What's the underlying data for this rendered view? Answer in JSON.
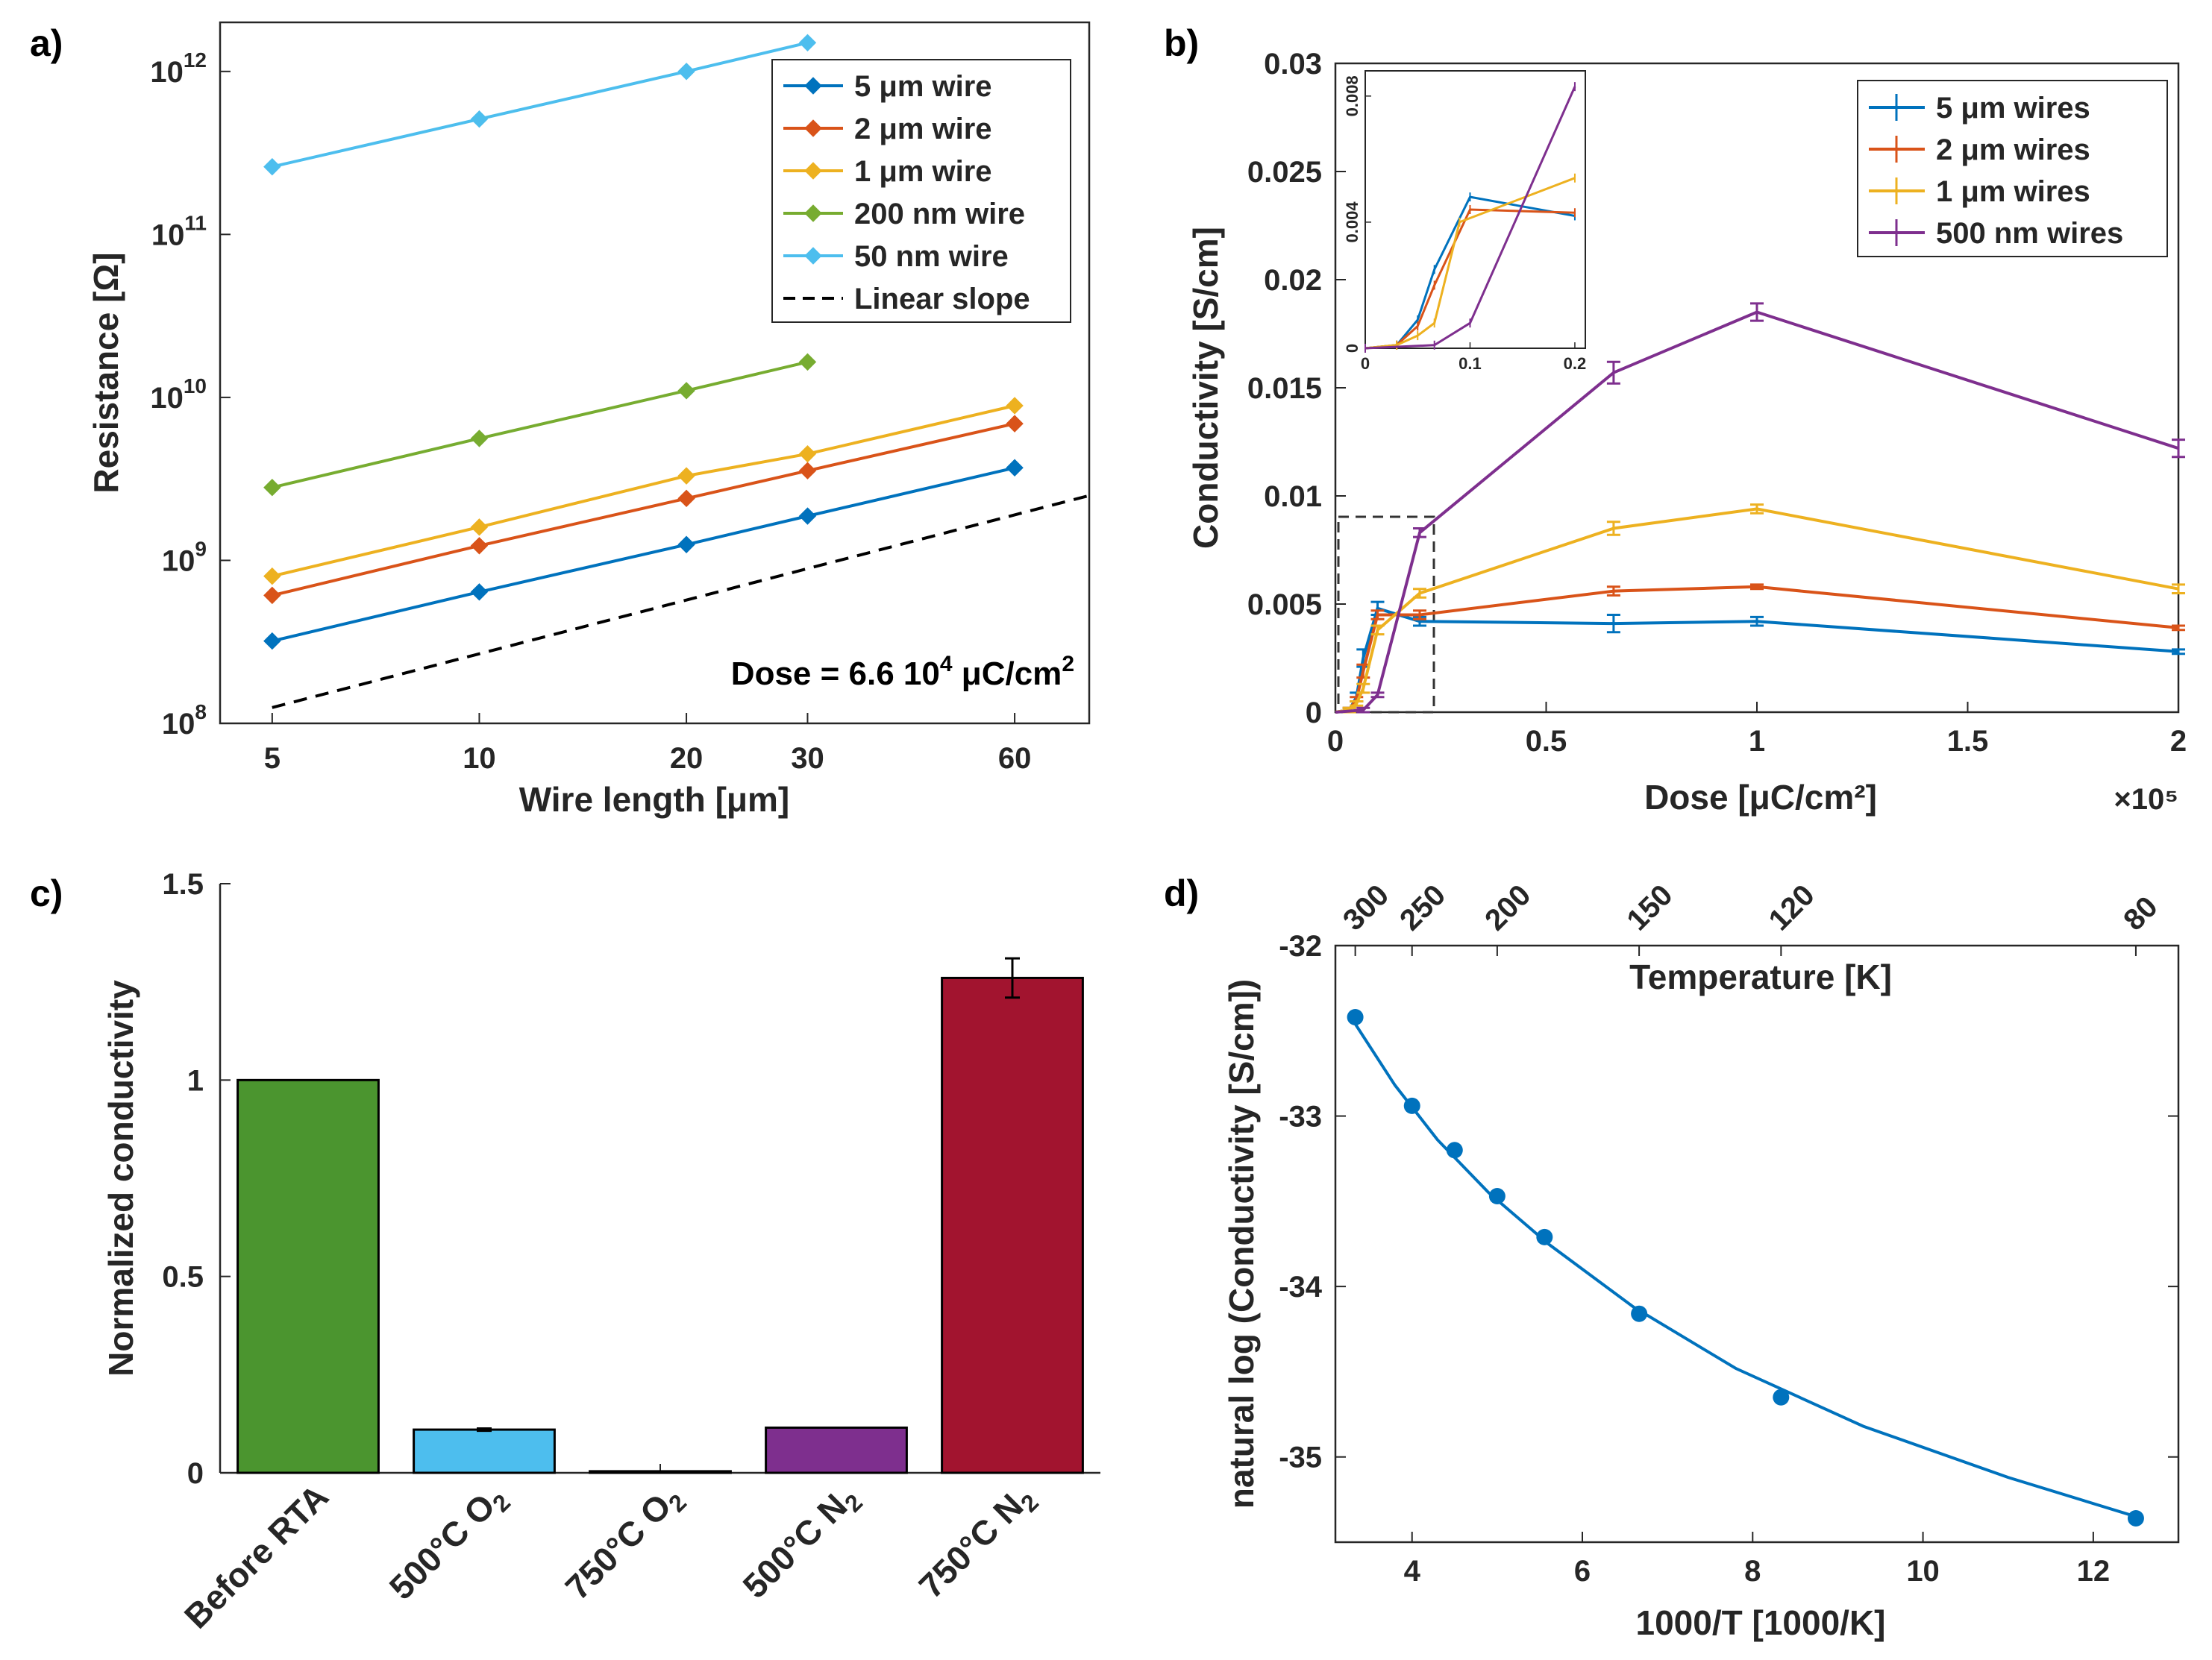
{
  "figure": {
    "panel_labels": [
      "a)",
      "b)",
      "c)",
      "d)"
    ]
  },
  "chart_data": [
    {
      "type": "line",
      "panel": "a)",
      "title": "",
      "xlabel": "Wire length   [μm]",
      "ylabel": "Resistance   [Ω]",
      "xscale": "log",
      "yscale": "log",
      "xlim": [
        4.2,
        77
      ],
      "ylim": [
        100000000,
        2000000000000
      ],
      "x_ticks": [
        5,
        10,
        20,
        30,
        60
      ],
      "x_tick_labels": [
        "5",
        "10",
        "20",
        "30",
        "60"
      ],
      "y_ticks": [
        100000000,
        1000000000,
        10000000000,
        100000000000,
        1000000000000
      ],
      "y_tick_labels": [
        {
          "base": "10",
          "exp": "8"
        },
        {
          "base": "10",
          "exp": "9"
        },
        {
          "base": "10",
          "exp": "10"
        },
        {
          "base": "10",
          "exp": "11"
        },
        {
          "base": "10",
          "exp": "12"
        }
      ],
      "grid": false,
      "legend_position": "top-right",
      "annotation": {
        "text": "Dose = 6.6 10",
        "sup": "4",
        "tail": " μC/cm",
        "sup2": "2"
      },
      "series": [
        {
          "name": "5 μm wire",
          "color": "#0072BD",
          "x": [
            5,
            10,
            20,
            30,
            60
          ],
          "y": [
            320000000,
            640000000,
            1250000000,
            1870000000,
            3700000000
          ]
        },
        {
          "name": "2 μm wire",
          "color": "#D95319",
          "x": [
            5,
            10,
            20,
            30,
            60
          ],
          "y": [
            610000000,
            1230000000,
            2400000000,
            3550000000,
            6900000000
          ]
        },
        {
          "name": "1 μm wire",
          "color": "#EDB120",
          "x": [
            5,
            10,
            20,
            30,
            60
          ],
          "y": [
            800000000,
            1600000000,
            3300000000,
            4500000000,
            8900000000
          ]
        },
        {
          "name": "200 nm wire",
          "color": "#77AC30",
          "x": [
            5,
            10,
            20,
            30
          ],
          "y": [
            2800000000,
            5600000000,
            11000000000,
            16500000000
          ]
        },
        {
          "name": "50 nm wire",
          "color": "#4DBEEE",
          "x": [
            5,
            10,
            20,
            30
          ],
          "y": [
            260000000000,
            510000000000,
            1000000000000,
            1500000000000
          ]
        },
        {
          "name": "Linear slope",
          "color": "#000000",
          "dashed": true,
          "x": [
            5,
            77
          ],
          "y": [
            125000000,
            2500000000
          ]
        }
      ]
    },
    {
      "type": "line",
      "panel": "b)",
      "title": "",
      "xlabel": "Dose   [μC/cm²]",
      "ylabel": "Conductivity   [S/cm]",
      "x_multiplier": "×10⁵",
      "xlim": [
        0,
        2
      ],
      "ylim": [
        0,
        0.03
      ],
      "x_ticks": [
        0,
        0.5,
        1,
        1.5,
        2
      ],
      "x_tick_labels": [
        "0",
        "0.5",
        "1",
        "1.5",
        "2"
      ],
      "y_ticks": [
        0,
        0.005,
        0.01,
        0.015,
        0.02,
        0.025,
        0.03
      ],
      "y_tick_labels": [
        "0",
        "0.005",
        "0.01",
        "0.015",
        "0.02",
        "0.025",
        "0.03"
      ],
      "grid": false,
      "legend_position": "top-right",
      "series": [
        {
          "name": "5 μm wires",
          "color": "#0072BD",
          "x": [
            0,
            0.033,
            0.05,
            0.066,
            0.1,
            0.2,
            0.66,
            1,
            2
          ],
          "y": [
            0,
            0.0001,
            0.0007,
            0.0025,
            0.0048,
            0.0042,
            0.0041,
            0.0042,
            0.0028
          ],
          "err": [
            0,
            0.0001,
            0.0002,
            0.0004,
            0.0003,
            0.0002,
            0.0004,
            0.0002,
            0.0001
          ]
        },
        {
          "name": "2 μm wires",
          "color": "#D95319",
          "x": [
            0,
            0.033,
            0.05,
            0.066,
            0.1,
            0.2,
            0.66,
            1,
            2
          ],
          "y": [
            0,
            0.0001,
            0.0006,
            0.0019,
            0.0045,
            0.0045,
            0.0056,
            0.0058,
            0.0039
          ],
          "err": [
            0,
            0.0001,
            0.0001,
            0.0003,
            0.0002,
            0.0002,
            0.0002,
            0.0001,
            0.0001
          ]
        },
        {
          "name": "1 μm wires",
          "color": "#EDB120",
          "x": [
            0,
            0.033,
            0.05,
            0.066,
            0.1,
            0.2,
            0.66,
            1,
            2
          ],
          "y": [
            0,
            0.0001,
            0.0004,
            0.0011,
            0.0038,
            0.0055,
            0.0085,
            0.0094,
            0.0057
          ],
          "err": [
            0,
            0.0001,
            0.0001,
            0.0002,
            0.0002,
            0.0002,
            0.0003,
            0.0002,
            0.0002
          ]
        },
        {
          "name": "500 nm wires",
          "color": "#7E2F8E",
          "x": [
            0,
            0.066,
            0.1,
            0.2,
            0.66,
            1,
            2
          ],
          "y": [
            0,
            0.0001,
            0.0008,
            0.0083,
            0.0157,
            0.0185,
            0.0122
          ],
          "err": [
            0,
            0.0001,
            0.0001,
            0.0002,
            0.0005,
            0.0004,
            0.0004
          ]
        }
      ],
      "inset": {
        "xlim": [
          0,
          0.21
        ],
        "ylim": [
          0,
          0.0088
        ],
        "x_ticks": [
          0,
          0.1,
          0.2
        ],
        "x_tick_labels": [
          "0",
          "0.1",
          "0.2"
        ],
        "y_ticks": [
          0,
          0.004,
          0.008
        ],
        "y_tick_labels": [
          "0",
          "0.004",
          "0.008"
        ],
        "series": [
          {
            "color": "#0072BD",
            "x": [
              0,
              0.03,
              0.05,
              0.066,
              0.1,
              0.2
            ],
            "y": [
              0,
              0.0001,
              0.0009,
              0.0025,
              0.0048,
              0.0042
            ]
          },
          {
            "color": "#D95319",
            "x": [
              0,
              0.03,
              0.05,
              0.066,
              0.1,
              0.2
            ],
            "y": [
              0,
              0.0001,
              0.0007,
              0.002,
              0.0044,
              0.0043
            ]
          },
          {
            "color": "#EDB120",
            "x": [
              0,
              0.03,
              0.05,
              0.066,
              0.09,
              0.2
            ],
            "y": [
              0,
              0.0001,
              0.0004,
              0.0008,
              0.004,
              0.0054
            ]
          },
          {
            "color": "#7E2F8E",
            "x": [
              0,
              0.066,
              0.1,
              0.2
            ],
            "y": [
              0,
              0.0001,
              0.0008,
              0.0083
            ]
          }
        ]
      }
    },
    {
      "type": "bar",
      "panel": "c)",
      "title": "",
      "xlabel": "",
      "ylabel": "Normalized conductivity",
      "ylim": [
        0,
        1.5
      ],
      "y_ticks": [
        0,
        0.5,
        1,
        1.5
      ],
      "y_tick_labels": [
        "0",
        "0.5",
        "1",
        "1.5"
      ],
      "grid": false,
      "categories": [
        {
          "main": "Before RTA",
          "sub": ""
        },
        {
          "main": "500°C O",
          "sub": "2"
        },
        {
          "main": "750°C O",
          "sub": "2"
        },
        {
          "main": "500°C N",
          "sub": "2"
        },
        {
          "main": "750°C N",
          "sub": "2"
        }
      ],
      "values": [
        1.0,
        0.11,
        0.004,
        0.115,
        1.26
      ],
      "errors": [
        0,
        0.003,
        0,
        0,
        0.05
      ],
      "colors": [
        "#4B952F",
        "#4DBEEE",
        "#26A7DF",
        "#7E2F8E",
        "#A2142F"
      ]
    },
    {
      "type": "scatter",
      "panel": "d)",
      "title": "",
      "xlabel": "1000/T   [1000/K]",
      "ylabel": "natural log (Conductivity [S/cm])",
      "top_xlabel": "Temperature   [K]",
      "xlim": [
        3.1,
        13.0
      ],
      "ylim": [
        -35.5,
        -32.0
      ],
      "x_ticks": [
        4,
        6,
        8,
        10,
        12
      ],
      "x_tick_labels": [
        "4",
        "6",
        "8",
        "10",
        "12"
      ],
      "y_ticks": [
        -32,
        -33,
        -34,
        -35
      ],
      "y_tick_labels": [
        "-32",
        "-33",
        "-34",
        "-35"
      ],
      "top_ticks": [
        300,
        250,
        200,
        150,
        120,
        80
      ],
      "top_tick_labels": [
        "300",
        "250",
        "200",
        "150",
        "120",
        "80"
      ],
      "grid": false,
      "color": "#0072BD",
      "x": [
        3.333,
        4.0,
        4.5,
        5.0,
        5.556,
        6.667,
        8.333,
        12.5
      ],
      "y": [
        -32.42,
        -32.94,
        -33.2,
        -33.47,
        -33.71,
        -34.16,
        -34.65,
        -35.36
      ],
      "fit_x": [
        3.333,
        3.8,
        4.3,
        4.9,
        5.6,
        6.6,
        7.8,
        9.3,
        11.0,
        12.5
      ],
      "fit_y": [
        -32.46,
        -32.82,
        -33.14,
        -33.45,
        -33.75,
        -34.12,
        -34.48,
        -34.82,
        -35.12,
        -35.35
      ]
    }
  ]
}
